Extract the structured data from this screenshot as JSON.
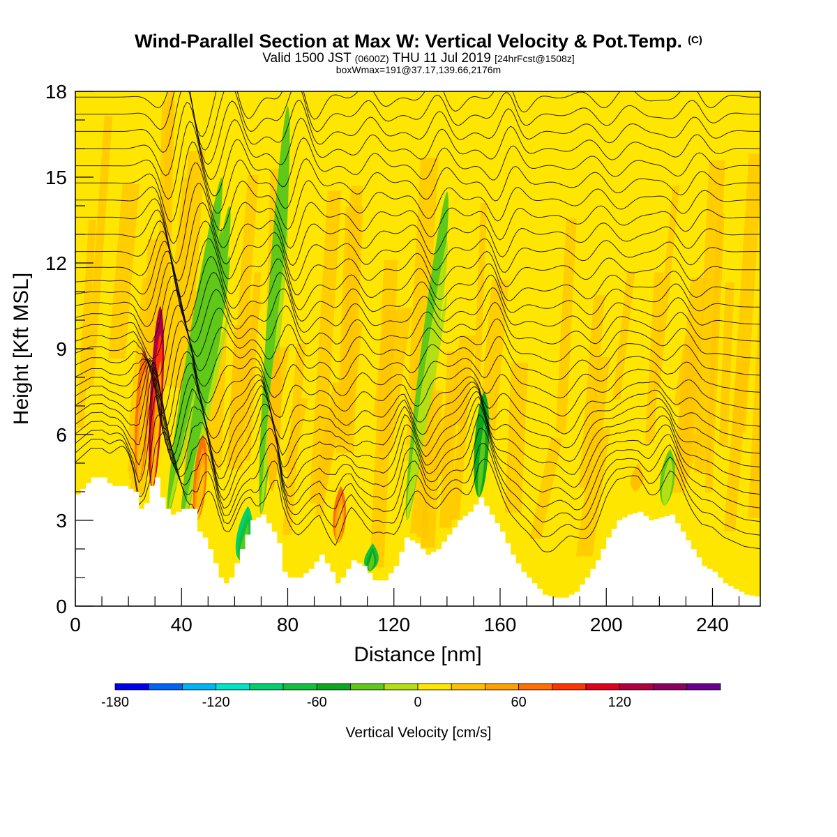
{
  "header": {
    "title": "Wind-Parallel Section at Max W: Vertical Velocity & Pot.Temp.",
    "title_mark": "(C)",
    "subtitle_a": "Valid 1500 JST",
    "subtitle_b": "(0600Z)",
    "subtitle_c": "THU 11 Jul 2019",
    "subtitle_d": "[24hrFcst@1508z]",
    "info": "boxWmax=191@37.17,139.66,2176m"
  },
  "chart_data": {
    "type": "heatmap",
    "xlabel": "Distance [nm]",
    "ylabel": "Height [Kft MSL]",
    "xlim": [
      0,
      258
    ],
    "ylim": [
      0,
      18
    ],
    "xticks": [
      0,
      40,
      80,
      120,
      160,
      200,
      240
    ],
    "yticks": [
      0,
      3,
      6,
      9,
      12,
      15,
      18
    ],
    "grid": false,
    "background_color": "#ffe600",
    "terrain": {
      "x": [
        0,
        3,
        6,
        10,
        13,
        18,
        22,
        24,
        26,
        28,
        30,
        32,
        34,
        36,
        40,
        44,
        46,
        48,
        50,
        52,
        54,
        56,
        58,
        62,
        66,
        70,
        74,
        76,
        78,
        80,
        84,
        88,
        92,
        96,
        98,
        100,
        104,
        108,
        112,
        116,
        120,
        124,
        128,
        132,
        136,
        140,
        144,
        148,
        152,
        156,
        160,
        164,
        168,
        172,
        176,
        180,
        184,
        188,
        192,
        196,
        200,
        204,
        208,
        212,
        216,
        220,
        224,
        228,
        232,
        236,
        240,
        244,
        248,
        252,
        258
      ],
      "y": [
        3.9,
        4.2,
        4.5,
        4.5,
        4.2,
        4.2,
        4.0,
        3.4,
        3.6,
        4.2,
        4.5,
        3.8,
        3.4,
        3.2,
        3.4,
        3.4,
        2.6,
        2.4,
        2.0,
        1.5,
        1.0,
        0.8,
        1.0,
        2.0,
        3.0,
        3.2,
        2.6,
        2.2,
        1.2,
        1.0,
        1.0,
        1.3,
        1.8,
        1.2,
        0.8,
        1.0,
        1.6,
        1.4,
        0.9,
        0.9,
        1.4,
        2.4,
        2.2,
        1.8,
        2.0,
        2.5,
        3.0,
        3.3,
        3.8,
        3.2,
        2.6,
        1.8,
        1.2,
        0.8,
        0.4,
        0.3,
        0.3,
        0.5,
        1.0,
        1.6,
        2.4,
        3.0,
        3.2,
        3.3,
        3.0,
        3.1,
        3.2,
        2.6,
        2.0,
        1.4,
        1.2,
        0.8,
        0.6,
        0.4,
        0.3
      ]
    },
    "updrafts": [
      {
        "x": 24,
        "ybot": 4.4,
        "ytop": 9.0,
        "lean": 2,
        "w": 60
      },
      {
        "x": 29,
        "ybot": 4.1,
        "ytop": 10.5,
        "lean": 3,
        "w": 130
      },
      {
        "x": 46,
        "ybot": 3.0,
        "ytop": 6.0,
        "lean": 2,
        "w": 70
      },
      {
        "x": 99,
        "ybot": 2.2,
        "ytop": 4.2,
        "lean": 1,
        "w": 60
      },
      {
        "x": 74,
        "ybot": 4.0,
        "ytop": 9.0,
        "lean": 2,
        "w": 20
      },
      {
        "x": 211,
        "ybot": 4.0,
        "ytop": 5.0,
        "lean": 1,
        "w": 35
      }
    ],
    "downdrafts": [
      {
        "x": 35,
        "ybot": 3.2,
        "ytop": 15.0,
        "lean": 20,
        "w": -40
      },
      {
        "x": 40,
        "ybot": 2.5,
        "ytop": 14.0,
        "lean": 18,
        "w": -40
      },
      {
        "x": 62,
        "ybot": 1.6,
        "ytop": 3.5,
        "lean": 3,
        "w": -90
      },
      {
        "x": 70,
        "ybot": 3.2,
        "ytop": 17.5,
        "lean": 10,
        "w": -40
      },
      {
        "x": 111,
        "ybot": 1.2,
        "ytop": 2.2,
        "lean": 1,
        "w": -80
      },
      {
        "x": 152,
        "ybot": 3.8,
        "ytop": 7.5,
        "lean": 2,
        "w": -60
      },
      {
        "x": 125,
        "ybot": 3.0,
        "ytop": 14.5,
        "lean": 15,
        "w": -25
      },
      {
        "x": 222,
        "ybot": 3.5,
        "ytop": 5.5,
        "lean": 2,
        "w": -25
      }
    ],
    "isentrope_levels_kft": [
      3.6,
      4.0,
      4.4,
      4.8,
      5.2,
      5.6,
      6.0,
      6.4,
      6.8,
      7.2,
      7.7,
      8.2,
      8.7,
      9.2,
      9.7,
      10.2,
      10.7,
      11.2,
      11.8,
      12.4,
      13.0,
      13.6,
      14.2,
      14.8,
      15.4,
      16.0,
      16.6,
      17.2,
      17.8
    ],
    "colorbar": {
      "label": "Vertical Velocity [cm/s]",
      "vmin": -180,
      "step": 20,
      "colors": [
        "#0000ee",
        "#0064f5",
        "#00b4f5",
        "#00e4c8",
        "#00d070",
        "#12c040",
        "#0aa81e",
        "#60c818",
        "#b4e012",
        "#ffe600",
        "#ffc000",
        "#ffa000",
        "#ff7000",
        "#ff3400",
        "#e0001e",
        "#b00040",
        "#8c0060",
        "#6a0090"
      ],
      "ticks": [
        -180,
        -120,
        -60,
        0,
        60,
        120
      ],
      "tick_labels": [
        "-180",
        "-120",
        "-60",
        "0",
        "60",
        "120"
      ]
    }
  }
}
